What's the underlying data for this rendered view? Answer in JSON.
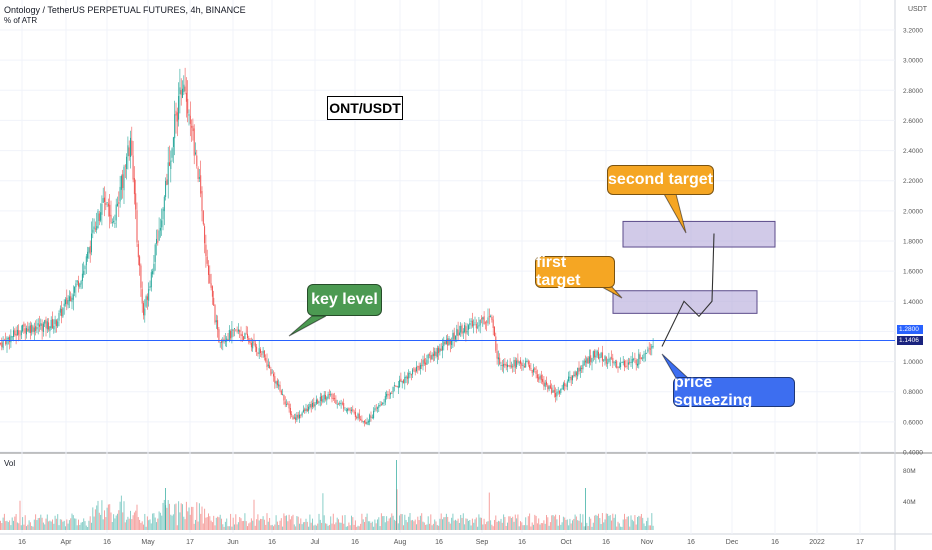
{
  "header": {
    "title": "Ontology / TetherUS PERPETUAL FUTURES, 4h, BINANCE",
    "indicator": "% of ATR",
    "volume_label": "Vol",
    "currency": "USDT"
  },
  "annotations": {
    "pair": "ONT/USDT",
    "key_level": "key level",
    "first_target": "first target",
    "second_target": "second target",
    "price_squeezing": "price squeezing"
  },
  "price_tags": {
    "atr": "1.2800",
    "last": "1.1406"
  },
  "colors": {
    "up": "#26a69a",
    "down": "#ef5350",
    "key_line": "#2962ff",
    "key_callout": "#4c9a52",
    "target_callout": "#f5a623",
    "squeeze_callout": "#3d6ef0",
    "zone_fill": "#b8aedb",
    "zone_border": "#5a4a8a"
  },
  "chart_data": {
    "type": "candlestick",
    "symbol": "Ontology / TetherUS PERPETUAL FUTURES",
    "timeframe": "4h",
    "exchange": "BINANCE",
    "y_axis": {
      "ticks": [
        "3.2000",
        "3.0000",
        "2.8000",
        "2.6000",
        "2.4000",
        "2.2000",
        "2.0000",
        "1.8000",
        "1.6000",
        "1.4000",
        "1.2000",
        "1.0000",
        "0.8000",
        "0.6000",
        "0.4000"
      ],
      "ylim": [
        0.4,
        3.2
      ]
    },
    "x_axis": {
      "ticks": [
        "16",
        "Apr",
        "16",
        "May",
        "17",
        "Jun",
        "16",
        "Jul",
        "16",
        "Aug",
        "16",
        "Sep",
        "16",
        "Oct",
        "16",
        "Nov",
        "16",
        "Dec",
        "16",
        "2022",
        "17"
      ]
    },
    "volume_axis": {
      "ticks": [
        "80M",
        "40M"
      ]
    },
    "key_level": 1.14,
    "last_price": 1.1406,
    "price_path": [
      {
        "date": "2021-03-01",
        "price": 1.12
      },
      {
        "date": "2021-03-10",
        "price": 1.22
      },
      {
        "date": "2021-03-22",
        "price": 1.25
      },
      {
        "date": "2021-04-02",
        "price": 1.6
      },
      {
        "date": "2021-04-09",
        "price": 2.05
      },
      {
        "date": "2021-04-14",
        "price": 1.95
      },
      {
        "date": "2021-04-20",
        "price": 2.45
      },
      {
        "date": "2021-04-25",
        "price": 1.3
      },
      {
        "date": "2021-05-01",
        "price": 1.85
      },
      {
        "date": "2021-05-07",
        "price": 2.55
      },
      {
        "date": "2021-05-10",
        "price": 2.85
      },
      {
        "date": "2021-05-16",
        "price": 2.3
      },
      {
        "date": "2021-05-20",
        "price": 1.6
      },
      {
        "date": "2021-05-24",
        "price": 1.15
      },
      {
        "date": "2021-06-01",
        "price": 1.2
      },
      {
        "date": "2021-06-10",
        "price": 1.05
      },
      {
        "date": "2021-06-22",
        "price": 0.62
      },
      {
        "date": "2021-07-05",
        "price": 0.78
      },
      {
        "date": "2021-07-20",
        "price": 0.6
      },
      {
        "date": "2021-08-01",
        "price": 0.85
      },
      {
        "date": "2021-08-15",
        "price": 1.05
      },
      {
        "date": "2021-08-25",
        "price": 1.2
      },
      {
        "date": "2021-09-06",
        "price": 1.3
      },
      {
        "date": "2021-09-09",
        "price": 1.0
      },
      {
        "date": "2021-09-20",
        "price": 0.98
      },
      {
        "date": "2021-10-01",
        "price": 0.78
      },
      {
        "date": "2021-10-10",
        "price": 0.95
      },
      {
        "date": "2021-10-16",
        "price": 1.05
      },
      {
        "date": "2021-10-25",
        "price": 0.98
      },
      {
        "date": "2021-11-01",
        "price": 1.0
      },
      {
        "date": "2021-11-08",
        "price": 1.14
      }
    ],
    "targets": [
      {
        "name": "first target",
        "low": 1.32,
        "high": 1.47
      },
      {
        "name": "second target",
        "low": 1.76,
        "high": 1.93
      }
    ],
    "projection": [
      {
        "date": "2021-11-08",
        "price": 1.1
      },
      {
        "date": "2021-11-12",
        "price": 1.4
      },
      {
        "date": "2021-11-16",
        "price": 1.3
      },
      {
        "date": "2021-11-22",
        "price": 1.4
      },
      {
        "date": "2021-11-26",
        "price": 1.85
      }
    ]
  }
}
